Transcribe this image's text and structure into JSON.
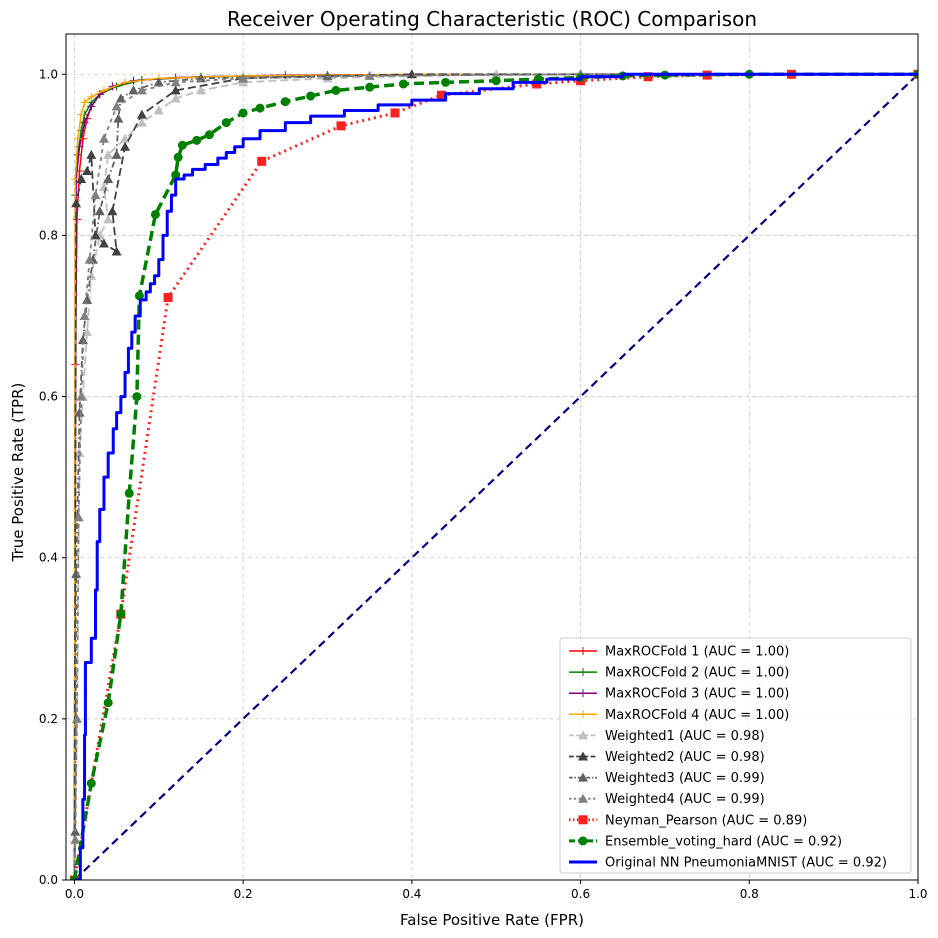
{
  "chart_data": {
    "type": "line",
    "title": "Receiver Operating Characteristic (ROC) Comparison",
    "xlabel": "False Positive Rate (FPR)",
    "ylabel": "True Positive Rate (TPR)",
    "xlim": [
      -0.01,
      1.0
    ],
    "ylim": [
      0.0,
      1.05
    ],
    "xticks": [
      "0.0",
      "0.2",
      "0.4",
      "0.6",
      "0.8",
      "1.0"
    ],
    "yticks": [
      "0.0",
      "0.2",
      "0.4",
      "0.6",
      "0.8",
      "1.0"
    ],
    "grid": true,
    "legend_position": "bottom-right",
    "series": [
      {
        "name": "MaxROCFold 1 (AUC = 1.00)",
        "color": "#ff0000",
        "dash": "",
        "width": 1.5,
        "marker": "plus",
        "points": [
          [
            0,
            0
          ],
          [
            0.001,
            0.64
          ],
          [
            0.003,
            0.82
          ],
          [
            0.006,
            0.88
          ],
          [
            0.01,
            0.92
          ],
          [
            0.015,
            0.945
          ],
          [
            0.02,
            0.96
          ],
          [
            0.03,
            0.975
          ],
          [
            0.05,
            0.985
          ],
          [
            0.08,
            0.993
          ],
          [
            0.15,
            0.997
          ],
          [
            0.3,
            0.999
          ],
          [
            0.6,
            1.0
          ],
          [
            1.0,
            1.0
          ]
        ]
      },
      {
        "name": "MaxROCFold 2 (AUC = 1.00)",
        "color": "#008000",
        "dash": "",
        "width": 1.5,
        "marker": "plus",
        "points": [
          [
            0,
            0
          ],
          [
            0.001,
            0.85
          ],
          [
            0.004,
            0.9
          ],
          [
            0.008,
            0.93
          ],
          [
            0.012,
            0.95
          ],
          [
            0.02,
            0.965
          ],
          [
            0.03,
            0.975
          ],
          [
            0.05,
            0.985
          ],
          [
            0.08,
            0.993
          ],
          [
            0.15,
            0.997
          ],
          [
            0.3,
            0.999
          ],
          [
            0.6,
            1.0
          ],
          [
            1.0,
            1.0
          ]
        ]
      },
      {
        "name": "MaxROCFold 3 (AUC = 1.00)",
        "color": "#800080",
        "dash": "",
        "width": 1.5,
        "marker": "plus",
        "points": [
          [
            0,
            0
          ],
          [
            0.002,
            0.87
          ],
          [
            0.006,
            0.91
          ],
          [
            0.012,
            0.94
          ],
          [
            0.02,
            0.96
          ],
          [
            0.03,
            0.975
          ],
          [
            0.045,
            0.985
          ],
          [
            0.07,
            0.992
          ],
          [
            0.12,
            0.996
          ],
          [
            0.25,
            0.999
          ],
          [
            0.5,
            1.0
          ],
          [
            1.0,
            1.0
          ]
        ]
      },
      {
        "name": "MaxROCFold 4 (AUC = 1.00)",
        "color": "#ffa500",
        "dash": "",
        "width": 1.5,
        "marker": "plus",
        "points": [
          [
            0,
            0
          ],
          [
            0.001,
            0.87
          ],
          [
            0.004,
            0.92
          ],
          [
            0.008,
            0.95
          ],
          [
            0.012,
            0.965
          ],
          [
            0.02,
            0.972
          ],
          [
            0.035,
            0.98
          ],
          [
            0.06,
            0.99
          ],
          [
            0.1,
            0.995
          ],
          [
            0.2,
            0.998
          ],
          [
            0.4,
            1.0
          ],
          [
            1.0,
            1.0
          ]
        ]
      },
      {
        "name": "Weighted1 (AUC = 0.98)",
        "color": "#bfbfbf",
        "dash": "8,4",
        "width": 1.8,
        "marker": "triangle",
        "points": [
          [
            0,
            0
          ],
          [
            0.003,
            0.2
          ],
          [
            0.006,
            0.53
          ],
          [
            0.01,
            0.6
          ],
          [
            0.015,
            0.68
          ],
          [
            0.02,
            0.75
          ],
          [
            0.03,
            0.8
          ],
          [
            0.04,
            0.82
          ],
          [
            0.035,
            0.86
          ],
          [
            0.04,
            0.9
          ],
          [
            0.06,
            0.92
          ],
          [
            0.08,
            0.94
          ],
          [
            0.1,
            0.955
          ],
          [
            0.12,
            0.97
          ],
          [
            0.15,
            0.98
          ],
          [
            0.2,
            0.99
          ],
          [
            0.3,
            0.995
          ],
          [
            0.5,
            1.0
          ],
          [
            1.0,
            1.0
          ]
        ]
      },
      {
        "name": "Weighted2 (AUC = 0.98)",
        "color": "#404040",
        "dash": "8,4",
        "width": 1.8,
        "marker": "triangle",
        "points": [
          [
            0,
            0
          ],
          [
            0.002,
            0.84
          ],
          [
            0.008,
            0.87
          ],
          [
            0.015,
            0.88
          ],
          [
            0.02,
            0.9
          ],
          [
            0.025,
            0.8
          ],
          [
            0.035,
            0.79
          ],
          [
            0.05,
            0.78
          ],
          [
            0.045,
            0.83
          ],
          [
            0.06,
            0.91
          ],
          [
            0.08,
            0.95
          ],
          [
            0.12,
            0.98
          ],
          [
            0.2,
            0.995
          ],
          [
            0.4,
            1.0
          ],
          [
            1.0,
            1.0
          ]
        ]
      },
      {
        "name": "Weighted3 (AUC = 0.99)",
        "color": "#606060",
        "dash": "6,3,1.5,3",
        "width": 1.8,
        "marker": "triangle",
        "points": [
          [
            0,
            0
          ],
          [
            0.001,
            0.06
          ],
          [
            0.002,
            0.38
          ],
          [
            0.006,
            0.58
          ],
          [
            0.01,
            0.67
          ],
          [
            0.015,
            0.72
          ],
          [
            0.022,
            0.77
          ],
          [
            0.03,
            0.83
          ],
          [
            0.04,
            0.87
          ],
          [
            0.05,
            0.9
          ],
          [
            0.052,
            0.945
          ],
          [
            0.055,
            0.97
          ],
          [
            0.07,
            0.98
          ],
          [
            0.1,
            0.99
          ],
          [
            0.15,
            0.995
          ],
          [
            0.3,
            0.998
          ],
          [
            0.6,
            1.0
          ],
          [
            1.0,
            1.0
          ]
        ]
      },
      {
        "name": "Weighted4 (AUC = 0.99)",
        "color": "#808080",
        "dash": "4,4",
        "width": 1.8,
        "marker": "triangle",
        "points": [
          [
            0,
            0
          ],
          [
            0.001,
            0.05
          ],
          [
            0.003,
            0.2
          ],
          [
            0.005,
            0.45
          ],
          [
            0.008,
            0.6
          ],
          [
            0.012,
            0.7
          ],
          [
            0.018,
            0.77
          ],
          [
            0.025,
            0.85
          ],
          [
            0.035,
            0.92
          ],
          [
            0.05,
            0.96
          ],
          [
            0.08,
            0.98
          ],
          [
            0.12,
            0.99
          ],
          [
            0.2,
            0.995
          ],
          [
            0.35,
            0.998
          ],
          [
            0.6,
            1.0
          ],
          [
            1.0,
            1.0
          ]
        ]
      },
      {
        "name": "Neyman_Pearson (AUC = 0.89)",
        "color": "#ff2020",
        "dash": "2,4",
        "width": 3.0,
        "marker": "square",
        "points": [
          [
            0,
            0
          ],
          [
            0.055,
            0.33
          ],
          [
            0.111,
            0.723
          ],
          [
            0.222,
            0.892
          ],
          [
            0.316,
            0.936
          ],
          [
            0.38,
            0.952
          ],
          [
            0.435,
            0.974
          ],
          [
            0.548,
            0.988
          ],
          [
            0.6,
            0.992
          ],
          [
            0.68,
            0.997
          ],
          [
            0.75,
            0.999
          ],
          [
            0.85,
            1.0
          ],
          [
            1.0,
            1.0
          ]
        ]
      },
      {
        "name": "Ensemble_voting_hard (AUC = 0.92)",
        "color": "#008000",
        "dash": "10,5",
        "width": 3.5,
        "marker": "circle",
        "points": [
          [
            0,
            0
          ],
          [
            0.02,
            0.12
          ],
          [
            0.04,
            0.22
          ],
          [
            0.055,
            0.33
          ],
          [
            0.065,
            0.48
          ],
          [
            0.074,
            0.6
          ],
          [
            0.077,
            0.725
          ],
          [
            0.096,
            0.826
          ],
          [
            0.12,
            0.875
          ],
          [
            0.123,
            0.897
          ],
          [
            0.128,
            0.912
          ],
          [
            0.145,
            0.918
          ],
          [
            0.16,
            0.925
          ],
          [
            0.18,
            0.94
          ],
          [
            0.2,
            0.952
          ],
          [
            0.22,
            0.958
          ],
          [
            0.25,
            0.966
          ],
          [
            0.28,
            0.973
          ],
          [
            0.31,
            0.98
          ],
          [
            0.35,
            0.984
          ],
          [
            0.39,
            0.988
          ],
          [
            0.44,
            0.99
          ],
          [
            0.5,
            0.992
          ],
          [
            0.55,
            0.994
          ],
          [
            0.6,
            0.996
          ],
          [
            0.65,
            0.998
          ],
          [
            0.7,
            0.999
          ],
          [
            0.8,
            1.0
          ],
          [
            1.0,
            1.0
          ]
        ]
      },
      {
        "name": "Original NN PneumoniaMNIST (AUC = 0.92)",
        "color": "#0000ff",
        "dash": "",
        "width": 3.0,
        "marker": "none",
        "steps": [
          [
            0,
            0
          ],
          [
            0.007,
            0.04
          ],
          [
            0.01,
            0.1
          ],
          [
            0.012,
            0.18
          ],
          [
            0.013,
            0.27
          ],
          [
            0.02,
            0.3
          ],
          [
            0.025,
            0.36
          ],
          [
            0.027,
            0.42
          ],
          [
            0.03,
            0.46
          ],
          [
            0.035,
            0.5
          ],
          [
            0.04,
            0.53
          ],
          [
            0.046,
            0.56
          ],
          [
            0.05,
            0.58
          ],
          [
            0.055,
            0.6
          ],
          [
            0.06,
            0.63
          ],
          [
            0.064,
            0.66
          ],
          [
            0.068,
            0.68
          ],
          [
            0.072,
            0.7
          ],
          [
            0.078,
            0.72
          ],
          [
            0.085,
            0.73
          ],
          [
            0.09,
            0.74
          ],
          [
            0.095,
            0.75
          ],
          [
            0.1,
            0.77
          ],
          [
            0.105,
            0.8
          ],
          [
            0.11,
            0.83
          ],
          [
            0.115,
            0.85
          ],
          [
            0.12,
            0.87
          ],
          [
            0.13,
            0.875
          ],
          [
            0.14,
            0.882
          ],
          [
            0.155,
            0.888
          ],
          [
            0.17,
            0.896
          ],
          [
            0.18,
            0.903
          ],
          [
            0.19,
            0.91
          ],
          [
            0.2,
            0.92
          ],
          [
            0.22,
            0.93
          ],
          [
            0.25,
            0.94
          ],
          [
            0.28,
            0.948
          ],
          [
            0.32,
            0.955
          ],
          [
            0.36,
            0.962
          ],
          [
            0.4,
            0.968
          ],
          [
            0.44,
            0.976
          ],
          [
            0.48,
            0.982
          ],
          [
            0.52,
            0.99
          ],
          [
            0.56,
            0.994
          ],
          [
            0.6,
            0.997
          ],
          [
            0.65,
            1.0
          ],
          [
            1.0,
            1.0
          ]
        ]
      }
    ],
    "diagonal": {
      "color": "#000080",
      "dash": "8,5",
      "width": 2.2,
      "points": [
        [
          0,
          0
        ],
        [
          1,
          1
        ]
      ]
    }
  }
}
